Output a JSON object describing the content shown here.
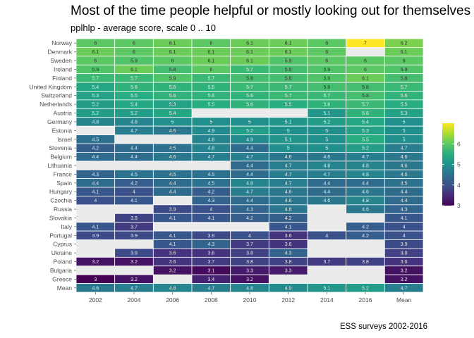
{
  "title": "Most of the time people helpful or mostly looking out for themselves",
  "subtitle": "pplhlp - average score, scale 0 .. 10",
  "caption": "ESS surveys 2002-2016",
  "chart_data": {
    "type": "heatmap",
    "x_categories": [
      "2002",
      "2004",
      "2006",
      "2008",
      "2010",
      "2012",
      "2014",
      "2016",
      "Mean"
    ],
    "y_categories": [
      "Norway",
      "Denmark",
      "Sweden",
      "Ireland",
      "Finland",
      "United Kingdom",
      "Switzerland",
      "Netherlands",
      "Austria",
      "Germany",
      "Estonia",
      "Israel",
      "Slovenia",
      "Belgium",
      "Lithuania",
      "France",
      "Spain",
      "Hungary",
      "Czechia",
      "Russia",
      "Slovakia",
      "Italy",
      "Portugal",
      "Cyprus",
      "Ukraine",
      "Poland",
      "Bulgaria",
      "Greece",
      "Mean"
    ],
    "values": [
      [
        6.0,
        6.0,
        6.1,
        6.0,
        6.1,
        6.1,
        6.0,
        7.0,
        6.2
      ],
      [
        6.1,
        6.0,
        6.1,
        6.1,
        6.1,
        6.1,
        6.0,
        null,
        6.1
      ],
      [
        6.0,
        5.9,
        6.0,
        6.1,
        6.1,
        5.9,
        6.0,
        6.0,
        6.0
      ],
      [
        5.9,
        6.1,
        5.8,
        6.0,
        5.7,
        5.8,
        5.9,
        6.0,
        5.9
      ],
      [
        5.7,
        5.7,
        5.9,
        5.7,
        5.8,
        5.8,
        5.9,
        6.1,
        5.8
      ],
      [
        5.4,
        5.6,
        5.6,
        5.6,
        5.7,
        5.7,
        5.8,
        5.8,
        5.7
      ],
      [
        5.3,
        5.5,
        5.6,
        5.6,
        5.6,
        5.7,
        5.7,
        5.8,
        5.6
      ],
      [
        5.2,
        5.4,
        5.3,
        5.5,
        5.6,
        5.5,
        5.6,
        5.7,
        5.5
      ],
      [
        5.2,
        5.2,
        5.4,
        null,
        null,
        null,
        5.1,
        5.6,
        5.3
      ],
      [
        4.8,
        4.8,
        5.0,
        5.0,
        5.0,
        5.1,
        5.2,
        5.4,
        5.0
      ],
      [
        null,
        4.7,
        4.6,
        4.9,
        5.2,
        5.0,
        5.0,
        5.3,
        5.0
      ],
      [
        4.5,
        null,
        null,
        4.8,
        4.9,
        5.1,
        5.0,
        5.5,
        5.0
      ],
      [
        4.2,
        4.4,
        4.5,
        4.8,
        4.4,
        5.0,
        5.0,
        5.2,
        4.7
      ],
      [
        4.4,
        4.4,
        4.6,
        4.7,
        4.7,
        4.6,
        4.6,
        4.7,
        4.6
      ],
      [
        null,
        null,
        null,
        null,
        4.4,
        4.7,
        4.8,
        4.8,
        4.6
      ],
      [
        4.3,
        4.5,
        4.5,
        4.5,
        4.4,
        4.7,
        4.7,
        4.8,
        4.6
      ],
      [
        4.4,
        4.2,
        4.4,
        4.5,
        4.8,
        4.7,
        4.4,
        4.4,
        4.5
      ],
      [
        4.1,
        4.0,
        4.4,
        4.2,
        4.7,
        4.6,
        4.4,
        4.6,
        4.4
      ],
      [
        4.0,
        4.1,
        null,
        4.3,
        4.4,
        4.6,
        4.6,
        4.8,
        4.4
      ],
      [
        null,
        null,
        3.9,
        4.0,
        4.3,
        4.6,
        null,
        4.6,
        4.3
      ],
      [
        null,
        3.8,
        4.1,
        4.1,
        4.2,
        4.2,
        null,
        null,
        4.1
      ],
      [
        4.1,
        3.7,
        null,
        null,
        null,
        4.1,
        null,
        4.2,
        4.0
      ],
      [
        3.9,
        3.9,
        4.1,
        3.9,
        4.0,
        3.6,
        4.0,
        4.2,
        4.0
      ],
      [
        null,
        null,
        4.1,
        4.3,
        3.7,
        3.6,
        null,
        null,
        3.9
      ],
      [
        null,
        3.9,
        3.6,
        3.6,
        3.8,
        4.3,
        null,
        null,
        3.8
      ],
      [
        3.2,
        3.2,
        3.6,
        3.7,
        3.8,
        3.8,
        3.7,
        3.8,
        3.6
      ],
      [
        null,
        null,
        3.2,
        3.1,
        3.3,
        3.3,
        null,
        null,
        3.2
      ],
      [
        3.0,
        3.2,
        null,
        3.4,
        3.2,
        null,
        null,
        null,
        3.2
      ],
      [
        4.6,
        4.7,
        4.8,
        4.7,
        4.8,
        4.9,
        5.1,
        5.2,
        4.7
      ]
    ],
    "color_scale": "viridis",
    "legend_range": [
      3,
      7
    ],
    "legend_ticks": [
      3,
      4,
      5,
      6
    ],
    "legend_placement": "right",
    "missing_color": "#ebebeb"
  }
}
